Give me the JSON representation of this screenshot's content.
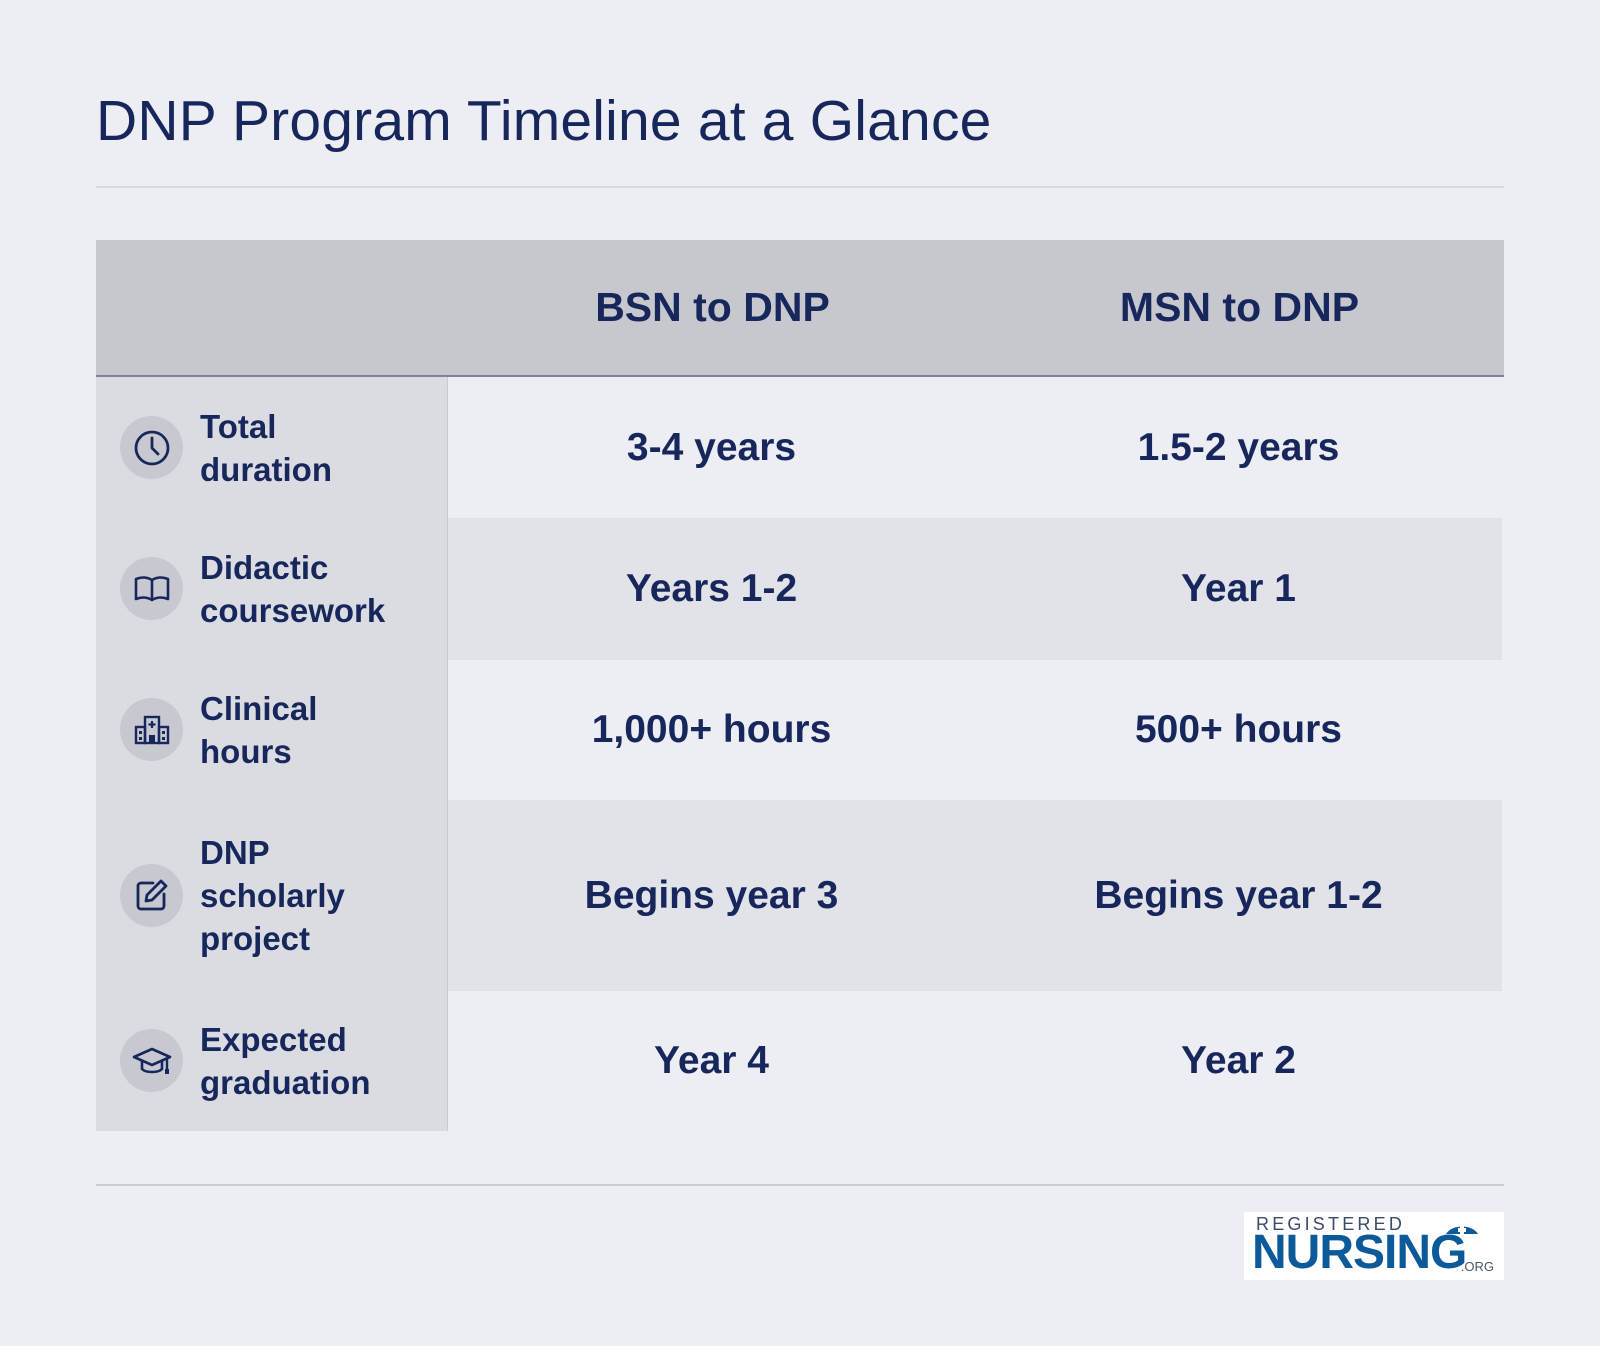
{
  "page": {
    "title": "DNP Program Timeline at a Glance"
  },
  "table": {
    "columns": [
      "BSN to DNP",
      "MSN to DNP"
    ],
    "rows": [
      {
        "icon": "clock-icon",
        "label": "Total duration",
        "bsn": "3-4 years",
        "msn": "1.5-2 years"
      },
      {
        "icon": "book-icon",
        "label": "Didactic coursework",
        "bsn": "Years 1-2",
        "msn": "Year 1"
      },
      {
        "icon": "hospital-icon",
        "label": "Clinical hours",
        "bsn": "1,000+ hours",
        "msn": "500+ hours"
      },
      {
        "icon": "edit-icon",
        "label": "DNP scholarly project",
        "bsn": "Begins year 3",
        "msn": "Begins year 1-2"
      },
      {
        "icon": "graduation-cap-icon",
        "label": "Expected graduation",
        "bsn": "Year 4",
        "msn": "Year 2"
      }
    ]
  },
  "logo": {
    "top_text": "REGISTERED",
    "main_text": "NURSING",
    "suffix": ".ORG"
  },
  "colors": {
    "text": "#17275c",
    "background": "#edeef4",
    "header_bg": "#c7c8ce",
    "label_bg": "#dbdce2",
    "logo_blue": "#0d5a9a"
  }
}
